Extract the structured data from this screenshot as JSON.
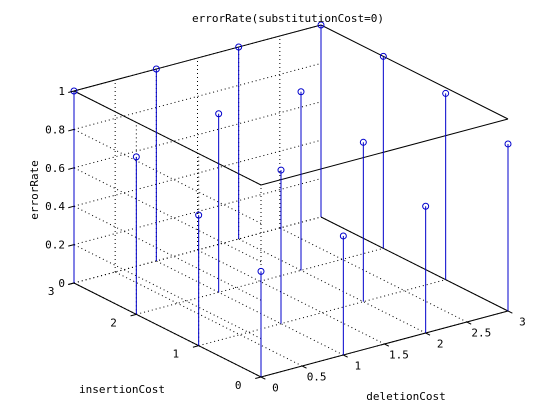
{
  "chart_data": {
    "type": "stem3",
    "title": "errorRate(substitutionCost=0)",
    "xlabel": "deletionCost",
    "ylabel": "insertionCost",
    "zlabel": "errorRate",
    "xlim": [
      0,
      3
    ],
    "ylim": [
      0,
      3
    ],
    "zlim": [
      0,
      1
    ],
    "x_ticks": [
      "0",
      "0.5",
      "1",
      "1.5",
      "2",
      "2.5",
      "3"
    ],
    "y_ticks": [
      "0",
      "1",
      "2",
      "3"
    ],
    "z_ticks": [
      "0",
      "0.2",
      "0.4",
      "0.6",
      "0.8",
      "1"
    ],
    "grid": true,
    "colors": {
      "series": "#0000cc",
      "axes": "#000000"
    },
    "points": [
      {
        "x": 0,
        "y": 0,
        "z": 0.55
      },
      {
        "x": 0,
        "y": 1,
        "z": 0.68
      },
      {
        "x": 0,
        "y": 2,
        "z": 0.82
      },
      {
        "x": 0,
        "y": 3,
        "z": 1.0
      },
      {
        "x": 1,
        "y": 0,
        "z": 0.62
      },
      {
        "x": 1,
        "y": 1,
        "z": 0.8
      },
      {
        "x": 1,
        "y": 2,
        "z": 0.93
      },
      {
        "x": 1,
        "y": 3,
        "z": 1.0
      },
      {
        "x": 2,
        "y": 0,
        "z": 0.66
      },
      {
        "x": 2,
        "y": 1,
        "z": 0.83
      },
      {
        "x": 2,
        "y": 2,
        "z": 0.93
      },
      {
        "x": 2,
        "y": 3,
        "z": 1.0
      },
      {
        "x": 3,
        "y": 0,
        "z": 0.87
      },
      {
        "x": 3,
        "y": 1,
        "z": 0.97
      },
      {
        "x": 3,
        "y": 2,
        "z": 1.0
      },
      {
        "x": 3,
        "y": 3,
        "z": 1.0
      }
    ]
  }
}
